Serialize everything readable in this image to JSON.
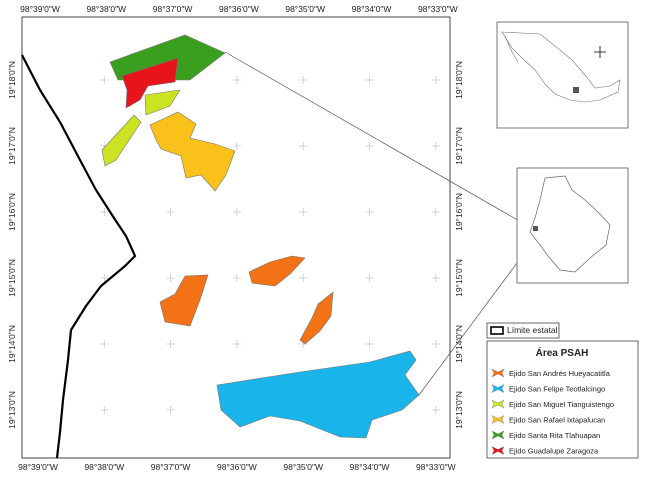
{
  "map": {
    "top_labels": [
      "98°39'0\"W",
      "98°38'0\"W",
      "98°37'0\"W",
      "98°36'0\"W",
      "98°35'0\"W",
      "98°34'0\"W",
      "98°33'0\"W"
    ],
    "bottom_labels": [
      "98°39'0\"W",
      "98°38'0\"W",
      "98°37'0\"W",
      "98°36'0\"W",
      "98°35'0\"W",
      "98°34'0\"W",
      "98°33'0\"W"
    ],
    "left_labels": [
      "19°18'0\"N",
      "19°17'0\"N",
      "19°16'0\"N",
      "19°15'0\"N",
      "19°14'0\"N",
      "19°13'0\"N"
    ],
    "right_labels": [
      "19°18'0\"N",
      "19°17'0\"N",
      "19°16'0\"N",
      "19°15'0\"N",
      "19°14'0\"N",
      "19°13'0\"N"
    ]
  },
  "legend": {
    "boundary": "Límite estatal",
    "title": "Área PSAH",
    "entries": [
      {
        "label": "Ejido San Andrés Hueyacatitla",
        "color": "#f47216"
      },
      {
        "label": "Ejido San Felipe Teotlalcingo",
        "color": "#19b5ea"
      },
      {
        "label": "Ejido San Miguel Tianguistengo",
        "color": "#cbe321"
      },
      {
        "label": "Ejido San Rafael Ixtapalucan",
        "color": "#f9c11a"
      },
      {
        "label": "Ejido Santa Rita Tlahuapan",
        "color": "#3a9e1e"
      },
      {
        "label": "Ejido Guadalupe Zaragoza",
        "color": "#e8141b"
      }
    ]
  }
}
